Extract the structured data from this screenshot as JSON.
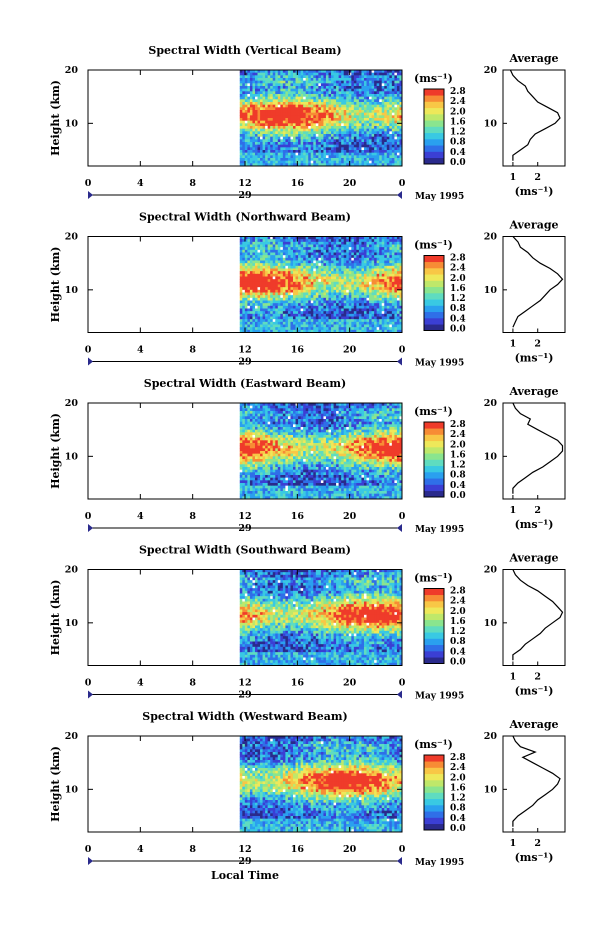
{
  "figure": {
    "xlabel": "Local Time",
    "date_label": "May 1995",
    "day_label": "29",
    "unit_label": "(ms⁻¹)",
    "average_title": "Average",
    "average_xlabel": "(ms⁻¹)",
    "ylabel": "Height (km)"
  },
  "chart_data": [
    {
      "type": "heatmap",
      "title": "Spectral Width (Vertical Beam)",
      "xlabel": "Local Time",
      "ylabel": "Height (km)",
      "xlim": [
        0,
        24
      ],
      "ylim": [
        2,
        20
      ],
      "x_ticks": [
        "0",
        "4",
        "8",
        "12",
        "16",
        "20",
        "0"
      ],
      "y_ticks": [
        "20",
        "10"
      ],
      "data_start_hour": 11.6,
      "colorbar": {
        "label": "(ms⁻¹)",
        "range": [
          0,
          2.8
        ],
        "ticks": [
          "2.8",
          "2.4",
          "2.0",
          "1.6",
          "1.2",
          "0.8",
          "0.4",
          "0.0"
        ]
      },
      "average_profile": {
        "title": "Average",
        "xlabel": "(ms⁻¹)",
        "x_ticks": [
          "1",
          "2"
        ],
        "height_km": [
          3,
          4,
          5,
          6,
          7,
          8,
          9,
          10,
          11,
          12,
          13,
          14,
          15,
          16,
          17,
          18,
          19,
          20
        ],
        "width": [
          1.0,
          1.0,
          1.3,
          1.6,
          1.7,
          1.9,
          2.3,
          2.7,
          2.9,
          2.8,
          2.4,
          2.0,
          1.8,
          1.6,
          1.5,
          1.2,
          1.0,
          0.9
        ]
      }
    },
    {
      "type": "heatmap",
      "title": "Spectral Width (Northward Beam)",
      "xlabel": "Local Time",
      "ylabel": "Height (km)",
      "xlim": [
        0,
        24
      ],
      "ylim": [
        2,
        20
      ],
      "x_ticks": [
        "0",
        "4",
        "8",
        "12",
        "16",
        "20",
        "0"
      ],
      "y_ticks": [
        "20",
        "10"
      ],
      "data_start_hour": 11.6,
      "colorbar": {
        "label": "(ms⁻¹)",
        "range": [
          0,
          2.8
        ],
        "ticks": [
          "2.8",
          "2.4",
          "2.0",
          "1.6",
          "1.2",
          "0.8",
          "0.4",
          "0.0"
        ]
      },
      "average_profile": {
        "title": "Average",
        "xlabel": "(ms⁻¹)",
        "x_ticks": [
          "1",
          "2"
        ],
        "height_km": [
          3,
          4,
          5,
          6,
          7,
          8,
          9,
          10,
          11,
          12,
          13,
          14,
          15,
          16,
          17,
          18,
          19,
          20
        ],
        "width": [
          1.0,
          1.1,
          1.2,
          1.5,
          1.8,
          2.1,
          2.3,
          2.5,
          2.8,
          3.0,
          2.8,
          2.5,
          2.1,
          1.8,
          1.6,
          1.3,
          1.2,
          1.0
        ]
      }
    },
    {
      "type": "heatmap",
      "title": "Spectral Width (Eastward Beam)",
      "xlabel": "Local Time",
      "ylabel": "Height (km)",
      "xlim": [
        0,
        24
      ],
      "ylim": [
        2,
        20
      ],
      "x_ticks": [
        "0",
        "4",
        "8",
        "12",
        "16",
        "20",
        "0"
      ],
      "y_ticks": [
        "20",
        "10"
      ],
      "data_start_hour": 11.6,
      "colorbar": {
        "label": "(ms⁻¹)",
        "range": [
          0,
          2.8
        ],
        "ticks": [
          "2.8",
          "2.4",
          "2.0",
          "1.6",
          "1.2",
          "0.8",
          "0.4",
          "0.0"
        ]
      },
      "average_profile": {
        "title": "Average",
        "xlabel": "(ms⁻¹)",
        "x_ticks": [
          "1",
          "2"
        ],
        "height_km": [
          3,
          4,
          5,
          6,
          7,
          8,
          9,
          10,
          11,
          12,
          13,
          14,
          15,
          16,
          17,
          18,
          19,
          20
        ],
        "width": [
          1.0,
          1.0,
          1.2,
          1.5,
          1.8,
          2.2,
          2.5,
          2.8,
          3.0,
          3.0,
          2.8,
          2.4,
          2.0,
          1.6,
          1.7,
          1.3,
          1.1,
          1.0
        ]
      }
    },
    {
      "type": "heatmap",
      "title": "Spectral Width (Southward Beam)",
      "xlabel": "Local Time",
      "ylabel": "Height (km)",
      "xlim": [
        0,
        24
      ],
      "ylim": [
        2,
        20
      ],
      "x_ticks": [
        "0",
        "4",
        "8",
        "12",
        "16",
        "20",
        "0"
      ],
      "y_ticks": [
        "20",
        "10"
      ],
      "data_start_hour": 11.6,
      "colorbar": {
        "label": "(ms⁻¹)",
        "range": [
          0,
          2.8
        ],
        "ticks": [
          "2.8",
          "2.4",
          "2.0",
          "1.6",
          "1.2",
          "0.8",
          "0.4",
          "0.0"
        ]
      },
      "average_profile": {
        "title": "Average",
        "xlabel": "(ms⁻¹)",
        "x_ticks": [
          "1",
          "2"
        ],
        "height_km": [
          3,
          4,
          5,
          6,
          7,
          8,
          9,
          10,
          11,
          12,
          13,
          14,
          15,
          16,
          17,
          18,
          19,
          20
        ],
        "width": [
          1.0,
          1.0,
          1.3,
          1.5,
          1.8,
          2.1,
          2.3,
          2.6,
          2.9,
          3.0,
          2.8,
          2.6,
          2.3,
          2.0,
          1.6,
          1.3,
          1.1,
          1.0
        ]
      }
    },
    {
      "type": "heatmap",
      "title": "Spectral Width (Westward Beam)",
      "xlabel": "Local Time",
      "ylabel": "Height (km)",
      "xlim": [
        0,
        24
      ],
      "ylim": [
        2,
        20
      ],
      "x_ticks": [
        "0",
        "4",
        "8",
        "12",
        "16",
        "20",
        "0"
      ],
      "y_ticks": [
        "20",
        "10"
      ],
      "data_start_hour": 11.6,
      "colorbar": {
        "label": "(ms⁻¹)",
        "range": [
          0,
          2.8
        ],
        "ticks": [
          "2.8",
          "2.4",
          "2.0",
          "1.6",
          "1.2",
          "0.8",
          "0.4",
          "0.0"
        ]
      },
      "average_profile": {
        "title": "Average",
        "xlabel": "(ms⁻¹)",
        "x_ticks": [
          "1",
          "2"
        ],
        "height_km": [
          3,
          4,
          5,
          6,
          7,
          8,
          9,
          10,
          11,
          12,
          13,
          14,
          15,
          16,
          17,
          18,
          19,
          20
        ],
        "width": [
          1.0,
          1.0,
          1.2,
          1.5,
          1.8,
          2.0,
          2.3,
          2.6,
          2.8,
          2.9,
          2.6,
          2.2,
          1.8,
          1.4,
          1.9,
          1.3,
          1.1,
          1.0
        ]
      }
    }
  ]
}
